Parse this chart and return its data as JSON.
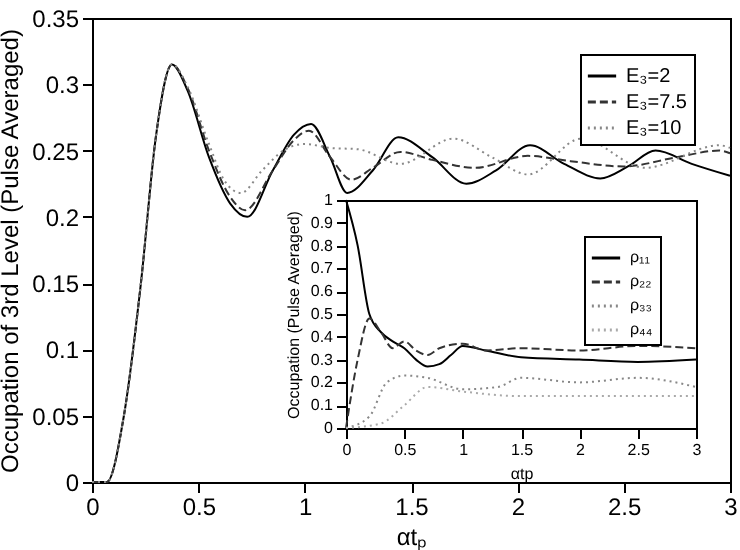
{
  "chart_data": [
    {
      "type": "line",
      "xlabel": "αtₚ",
      "ylabel": "Occupation of 3rd Level (Pulse Averaged)",
      "xlim": [
        0,
        3
      ],
      "xticks": [
        0,
        0.5,
        1,
        1.5,
        2,
        2.5,
        3
      ],
      "ylim": [
        0,
        0.35
      ],
      "yticks": [
        0,
        0.05,
        0.1,
        0.15,
        0.2,
        0.25,
        0.3,
        0.35
      ],
      "grid": false,
      "legend": "top right",
      "series": [
        {
          "name": "E₃=2",
          "color": "#000000",
          "line_style": "solid",
          "x": [
            0,
            0.07,
            0.15,
            0.23,
            0.3,
            0.376,
            0.45,
            0.55,
            0.65,
            0.73,
            0.85,
            0.95,
            1.03,
            1.12,
            1.2,
            1.32,
            1.44,
            1.6,
            1.76,
            1.9,
            2.06,
            2.22,
            2.39,
            2.52,
            2.65,
            2.82,
            3
          ],
          "values": [
            0,
            0,
            0.05,
            0.15,
            0.26,
            0.315,
            0.295,
            0.245,
            0.21,
            0.2,
            0.235,
            0.262,
            0.27,
            0.245,
            0.218,
            0.235,
            0.26,
            0.245,
            0.225,
            0.235,
            0.254,
            0.24,
            0.229,
            0.238,
            0.25,
            0.24,
            0.231
          ]
        },
        {
          "name": "E₃=7.5",
          "color": "#333333",
          "line_style": "dashed",
          "x": [
            0,
            0.07,
            0.15,
            0.23,
            0.3,
            0.376,
            0.45,
            0.55,
            0.65,
            0.72,
            0.85,
            0.95,
            1.02,
            1.12,
            1.22,
            1.32,
            1.45,
            1.6,
            1.8,
            2.05,
            2.25,
            2.5,
            2.75,
            2.95,
            3
          ],
          "values": [
            0,
            0,
            0.05,
            0.15,
            0.26,
            0.315,
            0.297,
            0.25,
            0.215,
            0.205,
            0.235,
            0.258,
            0.265,
            0.245,
            0.228,
            0.237,
            0.249,
            0.243,
            0.237,
            0.246,
            0.242,
            0.238,
            0.245,
            0.25,
            0.248
          ]
        },
        {
          "name": "E₃=10",
          "color": "#888888",
          "line_style": "dotted",
          "x": [
            0,
            0.07,
            0.15,
            0.23,
            0.3,
            0.376,
            0.45,
            0.55,
            0.62,
            0.7,
            0.8,
            0.9,
            1.0,
            1.12,
            1.25,
            1.45,
            1.7,
            1.88,
            2.05,
            2.3,
            2.6,
            2.95,
            3
          ],
          "values": [
            0,
            0,
            0.05,
            0.15,
            0.26,
            0.315,
            0.298,
            0.255,
            0.228,
            0.218,
            0.235,
            0.25,
            0.255,
            0.252,
            0.251,
            0.24,
            0.259,
            0.245,
            0.232,
            0.259,
            0.237,
            0.254,
            0.252
          ]
        }
      ]
    },
    {
      "type": "line",
      "xlabel": "αtp",
      "ylabel": "Occupation (Pulse Averaged)",
      "xlim": [
        0,
        3
      ],
      "xticks": [
        0,
        0.5,
        1,
        1.5,
        2,
        2.5,
        3
      ],
      "ylim": [
        0,
        1
      ],
      "yticks": [
        0,
        0.1,
        0.2,
        0.3,
        0.4,
        0.5,
        0.6,
        0.7,
        0.8,
        0.9,
        1
      ],
      "grid": false,
      "legend": "top right",
      "series": [
        {
          "name": "ρ₁₁",
          "color": "#000000",
          "line_style": "solid",
          "x": [
            0,
            0.1,
            0.2,
            0.3,
            0.4,
            0.5,
            0.6,
            0.7,
            0.8,
            0.9,
            1,
            1.2,
            1.5,
            2,
            2.5,
            3
          ],
          "values": [
            1,
            0.8,
            0.5,
            0.42,
            0.38,
            0.35,
            0.3,
            0.27,
            0.28,
            0.32,
            0.36,
            0.34,
            0.31,
            0.3,
            0.29,
            0.3
          ]
        },
        {
          "name": "ρ₂₂",
          "color": "#333333",
          "line_style": "dashed",
          "x": [
            0,
            0.1,
            0.2,
            0.3,
            0.4,
            0.5,
            0.6,
            0.7,
            0.8,
            1,
            1.2,
            1.5,
            2,
            2.5,
            3
          ],
          "values": [
            0,
            0.3,
            0.48,
            0.42,
            0.35,
            0.38,
            0.34,
            0.32,
            0.35,
            0.37,
            0.34,
            0.35,
            0.34,
            0.36,
            0.35
          ]
        },
        {
          "name": "ρ₃₃",
          "color": "#888888",
          "line_style": "dotted",
          "x": [
            0,
            0.2,
            0.35,
            0.5,
            0.7,
            1,
            1.3,
            1.5,
            2,
            2.5,
            3
          ],
          "values": [
            0,
            0.05,
            0.2,
            0.23,
            0.22,
            0.17,
            0.18,
            0.22,
            0.2,
            0.22,
            0.18
          ]
        },
        {
          "name": "ρ₄₄",
          "color": "#aaaaaa",
          "line_style": "dotted",
          "x": [
            0,
            0.3,
            0.5,
            0.7,
            1,
            1.5,
            2,
            2.5,
            3
          ],
          "values": [
            0,
            0.02,
            0.1,
            0.18,
            0.16,
            0.14,
            0.14,
            0.14,
            0.14
          ]
        }
      ]
    }
  ]
}
